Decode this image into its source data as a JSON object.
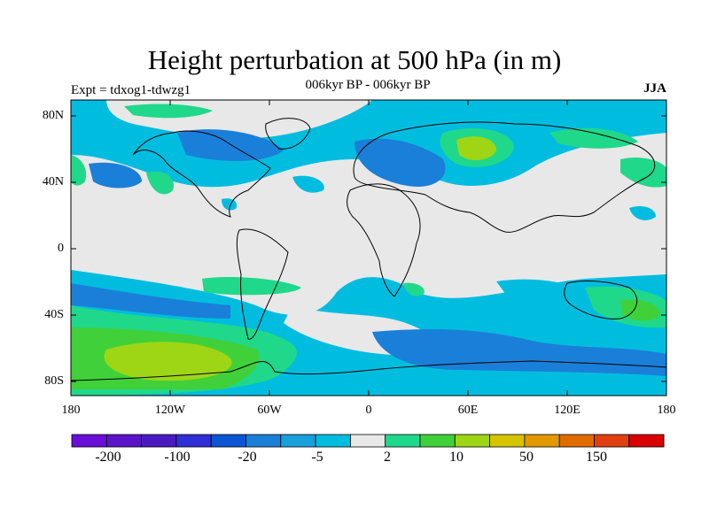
{
  "title": "Height perturbation at 500 hPa (in m)",
  "subtitle": "006kyr BP - 006kyr BP",
  "experiment": "Expt = tdxog1-tdwzg1",
  "season": "JJA",
  "lat_labels": [
    "80N",
    "40N",
    "0",
    "40S",
    "80S"
  ],
  "lon_labels": [
    "180",
    "120W",
    "60W",
    "0",
    "60E",
    "120E",
    "180"
  ],
  "colorbar": {
    "colors": [
      "#6a0fd8",
      "#5a14c9",
      "#4a19c2",
      "#2f2fd6",
      "#0a56d3",
      "#1a7fd9",
      "#18a0db",
      "#00bde0",
      "#e8e8e8",
      "#20d88a",
      "#40d03a",
      "#9ed616",
      "#d6c400",
      "#e09a00",
      "#e06c00",
      "#e04010",
      "#d80000"
    ],
    "labels": [
      "-200",
      "-100",
      "-20",
      "-5",
      "2",
      "10",
      "50",
      "150"
    ]
  },
  "map_colors": {
    "background": "#e8e8e8",
    "cyan": "#00bde0",
    "blue": "#1a7fd9",
    "darkblue": "#0a56d3",
    "green": "#20d88a",
    "lime": "#40d03a",
    "yellowgreen": "#9ed616"
  }
}
